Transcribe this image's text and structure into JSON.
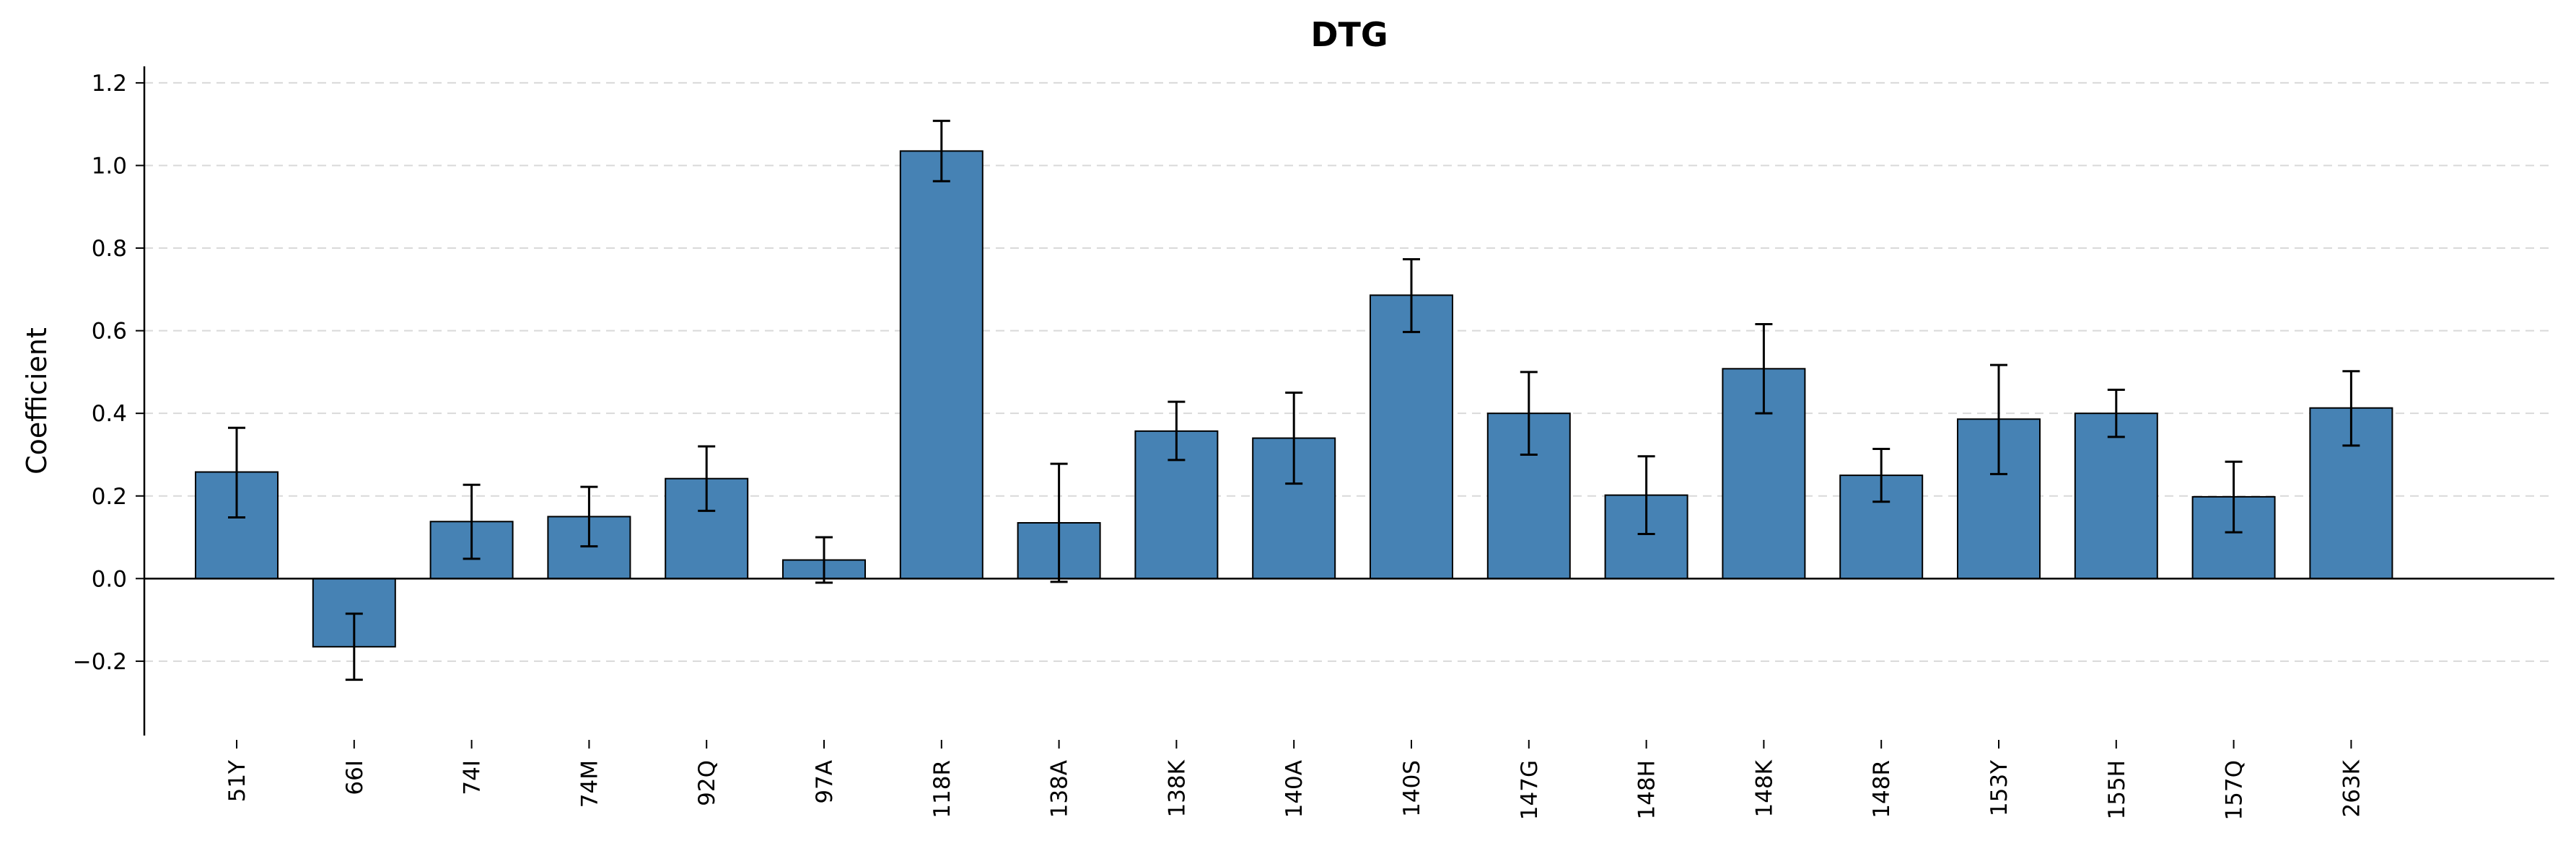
{
  "chart_data": {
    "type": "bar",
    "title": "DTG",
    "xlabel": "",
    "ylabel": "Coefficient",
    "ylim": [
      -0.38,
      1.24
    ],
    "yticks": [
      -0.2,
      0.0,
      0.2,
      0.4,
      0.6,
      0.8,
      1.0,
      1.2
    ],
    "ytick_labels": [
      "−0.2",
      "0.0",
      "0.2",
      "0.4",
      "0.6",
      "0.8",
      "1.0",
      "1.2"
    ],
    "grid": "horizontal dashed",
    "categories": [
      "51Y",
      "66I",
      "74I",
      "74M",
      "92Q",
      "97A",
      "118R",
      "138A",
      "138K",
      "140A",
      "140S",
      "147G",
      "148H",
      "148K",
      "148R",
      "153Y",
      "155H",
      "157Q",
      "263K"
    ],
    "values": [
      0.258,
      -0.165,
      0.138,
      0.15,
      0.242,
      0.045,
      1.035,
      0.135,
      0.357,
      0.34,
      0.686,
      0.4,
      0.202,
      0.508,
      0.25,
      0.386,
      0.4,
      0.198,
      0.413
    ],
    "error_low": [
      0.148,
      -0.245,
      0.048,
      0.078,
      0.164,
      -0.01,
      0.962,
      -0.008,
      0.287,
      0.23,
      0.597,
      0.3,
      0.108,
      0.4,
      0.186,
      0.253,
      0.343,
      0.112,
      0.322
    ],
    "error_high": [
      0.365,
      -0.085,
      0.227,
      0.222,
      0.32,
      0.1,
      1.108,
      0.278,
      0.428,
      0.45,
      0.773,
      0.5,
      0.296,
      0.616,
      0.314,
      0.517,
      0.457,
      0.283,
      0.502
    ]
  },
  "colors": {
    "bar_fill": "#4682b4",
    "bar_edge": "#000000",
    "error_bar": "#000000",
    "grid": "#d9d9d9",
    "zero_line": "#000000"
  }
}
